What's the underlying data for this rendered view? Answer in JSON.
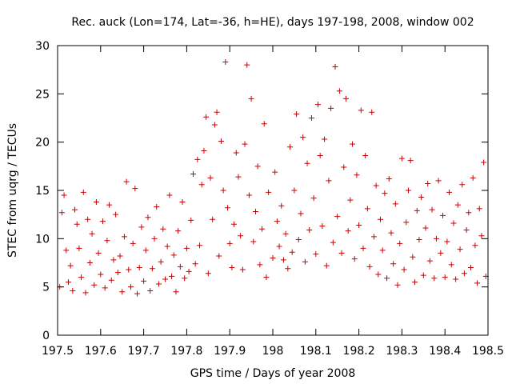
{
  "chart_data": {
    "type": "scatter",
    "title": "Rec. auck (Lon=174, Lat=-36, h=HE), days 197-198, 2008, window 002",
    "xlabel": "GPS time / Days of year 2008",
    "ylabel": "STEC from uqrg / TECUs",
    "xlim": [
      197.5,
      198.5
    ],
    "ylim": [
      0,
      30
    ],
    "x_ticks": [
      197.5,
      197.6,
      197.7,
      197.8,
      197.9,
      198,
      198.1,
      198.2,
      198.3,
      198.4,
      198.5
    ],
    "x_tick_labels": [
      "197.5",
      "197.6",
      "197.7",
      "197.8",
      "197.9",
      "198",
      "198.1",
      "198.2",
      "198.3",
      "198.4",
      "198.5"
    ],
    "y_ticks": [
      0,
      5,
      10,
      15,
      20,
      25,
      30
    ],
    "y_tick_labels": [
      "0",
      "5",
      "10",
      "15",
      "20",
      "25",
      "30"
    ],
    "marker": "plus",
    "color": "#cc0000",
    "grid": false,
    "series": [
      {
        "name": "STEC",
        "points": [
          [
            197.505,
            5.0
          ],
          [
            197.51,
            12.7
          ],
          [
            197.515,
            14.5
          ],
          [
            197.52,
            8.8
          ],
          [
            197.525,
            5.5
          ],
          [
            197.53,
            7.2
          ],
          [
            197.535,
            4.6
          ],
          [
            197.54,
            13.0
          ],
          [
            197.545,
            11.5
          ],
          [
            197.55,
            9.0
          ],
          [
            197.555,
            6.0
          ],
          [
            197.56,
            14.8
          ],
          [
            197.565,
            4.4
          ],
          [
            197.57,
            12.0
          ],
          [
            197.575,
            7.5
          ],
          [
            197.58,
            10.5
          ],
          [
            197.585,
            5.2
          ],
          [
            197.59,
            13.8
          ],
          [
            197.595,
            8.5
          ],
          [
            197.6,
            6.3
          ],
          [
            197.605,
            11.8
          ],
          [
            197.61,
            4.9
          ],
          [
            197.615,
            9.8
          ],
          [
            197.62,
            13.5
          ],
          [
            197.625,
            5.7
          ],
          [
            197.63,
            7.8
          ],
          [
            197.635,
            12.5
          ],
          [
            197.64,
            6.5
          ],
          [
            197.645,
            8.2
          ],
          [
            197.65,
            4.5
          ],
          [
            197.655,
            10.2
          ],
          [
            197.66,
            15.9
          ],
          [
            197.665,
            6.8
          ],
          [
            197.67,
            5.0
          ],
          [
            197.675,
            9.5
          ],
          [
            197.68,
            15.2
          ],
          [
            197.685,
            4.3
          ],
          [
            197.69,
            7.0
          ],
          [
            197.695,
            11.2
          ],
          [
            197.7,
            5.6
          ],
          [
            197.705,
            8.8
          ],
          [
            197.71,
            12.2
          ],
          [
            197.715,
            4.6
          ],
          [
            197.72,
            6.9
          ],
          [
            197.725,
            10.0
          ],
          [
            197.73,
            13.3
          ],
          [
            197.735,
            5.3
          ],
          [
            197.74,
            7.6
          ],
          [
            197.745,
            11.0
          ],
          [
            197.75,
            5.8
          ],
          [
            197.755,
            9.2
          ],
          [
            197.76,
            14.5
          ],
          [
            197.765,
            6.1
          ],
          [
            197.77,
            8.3
          ],
          [
            197.775,
            4.5
          ],
          [
            197.78,
            10.8
          ],
          [
            197.785,
            7.1
          ],
          [
            197.79,
            13.8
          ],
          [
            197.795,
            5.9
          ],
          [
            197.8,
            9.0
          ],
          [
            197.805,
            6.6
          ],
          [
            197.81,
            11.9
          ],
          [
            197.815,
            16.7
          ],
          [
            197.82,
            7.4
          ],
          [
            197.825,
            18.2
          ],
          [
            197.83,
            9.3
          ],
          [
            197.835,
            15.6
          ],
          [
            197.84,
            19.1
          ],
          [
            197.845,
            22.6
          ],
          [
            197.85,
            6.4
          ],
          [
            197.855,
            16.3
          ],
          [
            197.86,
            12.0
          ],
          [
            197.865,
            21.8
          ],
          [
            197.87,
            23.1
          ],
          [
            197.875,
            8.2
          ],
          [
            197.88,
            20.1
          ],
          [
            197.885,
            15.0
          ],
          [
            197.89,
            28.3
          ],
          [
            197.895,
            13.2
          ],
          [
            197.9,
            9.5
          ],
          [
            197.905,
            7.0
          ],
          [
            197.91,
            11.5
          ],
          [
            197.915,
            18.9
          ],
          [
            197.92,
            16.4
          ],
          [
            197.925,
            10.3
          ],
          [
            197.93,
            6.8
          ],
          [
            197.935,
            19.8
          ],
          [
            197.94,
            28.0
          ],
          [
            197.945,
            14.5
          ],
          [
            197.95,
            24.5
          ],
          [
            197.955,
            9.7
          ],
          [
            197.96,
            12.8
          ],
          [
            197.965,
            17.5
          ],
          [
            197.97,
            7.3
          ],
          [
            197.975,
            11.0
          ],
          [
            197.98,
            21.9
          ],
          [
            197.985,
            6.0
          ],
          [
            197.99,
            14.8
          ],
          [
            198.0,
            8.0
          ],
          [
            198.005,
            16.9
          ],
          [
            198.01,
            11.8
          ],
          [
            198.015,
            9.2
          ],
          [
            198.02,
            13.4
          ],
          [
            198.025,
            7.8
          ],
          [
            198.03,
            10.5
          ],
          [
            198.035,
            6.9
          ],
          [
            198.04,
            19.5
          ],
          [
            198.045,
            8.6
          ],
          [
            198.05,
            15.0
          ],
          [
            198.055,
            22.9
          ],
          [
            198.06,
            9.9
          ],
          [
            198.065,
            12.6
          ],
          [
            198.07,
            20.5
          ],
          [
            198.075,
            7.6
          ],
          [
            198.08,
            17.8
          ],
          [
            198.085,
            10.9
          ],
          [
            198.09,
            22.5
          ],
          [
            198.095,
            14.2
          ],
          [
            198.1,
            8.4
          ],
          [
            198.105,
            23.9
          ],
          [
            198.11,
            18.6
          ],
          [
            198.115,
            11.3
          ],
          [
            198.12,
            20.3
          ],
          [
            198.125,
            7.2
          ],
          [
            198.13,
            16.0
          ],
          [
            198.135,
            23.5
          ],
          [
            198.14,
            9.6
          ],
          [
            198.145,
            27.8
          ],
          [
            198.15,
            12.3
          ],
          [
            198.155,
            25.3
          ],
          [
            198.16,
            8.5
          ],
          [
            198.165,
            17.4
          ],
          [
            198.17,
            24.5
          ],
          [
            198.175,
            10.8
          ],
          [
            198.18,
            14.0
          ],
          [
            198.185,
            19.8
          ],
          [
            198.19,
            7.9
          ],
          [
            198.195,
            16.6
          ],
          [
            198.2,
            11.4
          ],
          [
            198.205,
            23.3
          ],
          [
            198.21,
            9.0
          ],
          [
            198.215,
            18.6
          ],
          [
            198.22,
            13.1
          ],
          [
            198.225,
            7.1
          ],
          [
            198.23,
            23.1
          ],
          [
            198.235,
            10.2
          ],
          [
            198.24,
            15.5
          ],
          [
            198.245,
            6.3
          ],
          [
            198.25,
            12.0
          ],
          [
            198.255,
            8.8
          ],
          [
            198.26,
            14.7
          ],
          [
            198.265,
            5.9
          ],
          [
            198.27,
            16.2
          ],
          [
            198.275,
            10.6
          ],
          [
            198.28,
            7.4
          ],
          [
            198.285,
            13.6
          ],
          [
            198.29,
            5.2
          ],
          [
            198.295,
            9.5
          ],
          [
            198.3,
            18.3
          ],
          [
            198.305,
            6.8
          ],
          [
            198.31,
            11.7
          ],
          [
            198.315,
            15.0
          ],
          [
            198.32,
            18.1
          ],
          [
            198.325,
            8.1
          ],
          [
            198.33,
            5.5
          ],
          [
            198.335,
            12.9
          ],
          [
            198.34,
            9.9
          ],
          [
            198.345,
            14.3
          ],
          [
            198.35,
            6.2
          ],
          [
            198.355,
            11.1
          ],
          [
            198.36,
            15.7
          ],
          [
            198.365,
            7.7
          ],
          [
            198.37,
            13.0
          ],
          [
            198.375,
            5.9
          ],
          [
            198.38,
            10.0
          ],
          [
            198.385,
            16.0
          ],
          [
            198.39,
            8.5
          ],
          [
            198.395,
            12.4
          ],
          [
            198.4,
            6.0
          ],
          [
            198.405,
            9.7
          ],
          [
            198.41,
            14.8
          ],
          [
            198.415,
            7.3
          ],
          [
            198.42,
            11.6
          ],
          [
            198.425,
            5.8
          ],
          [
            198.43,
            13.5
          ],
          [
            198.435,
            8.9
          ],
          [
            198.44,
            15.6
          ],
          [
            198.445,
            6.4
          ],
          [
            198.45,
            10.9
          ],
          [
            198.455,
            12.7
          ],
          [
            198.46,
            7.0
          ],
          [
            198.465,
            16.3
          ],
          [
            198.47,
            9.3
          ],
          [
            198.475,
            5.4
          ],
          [
            198.48,
            13.1
          ],
          [
            198.485,
            10.3
          ],
          [
            198.49,
            17.9
          ],
          [
            198.495,
            6.1
          ]
        ]
      }
    ]
  }
}
